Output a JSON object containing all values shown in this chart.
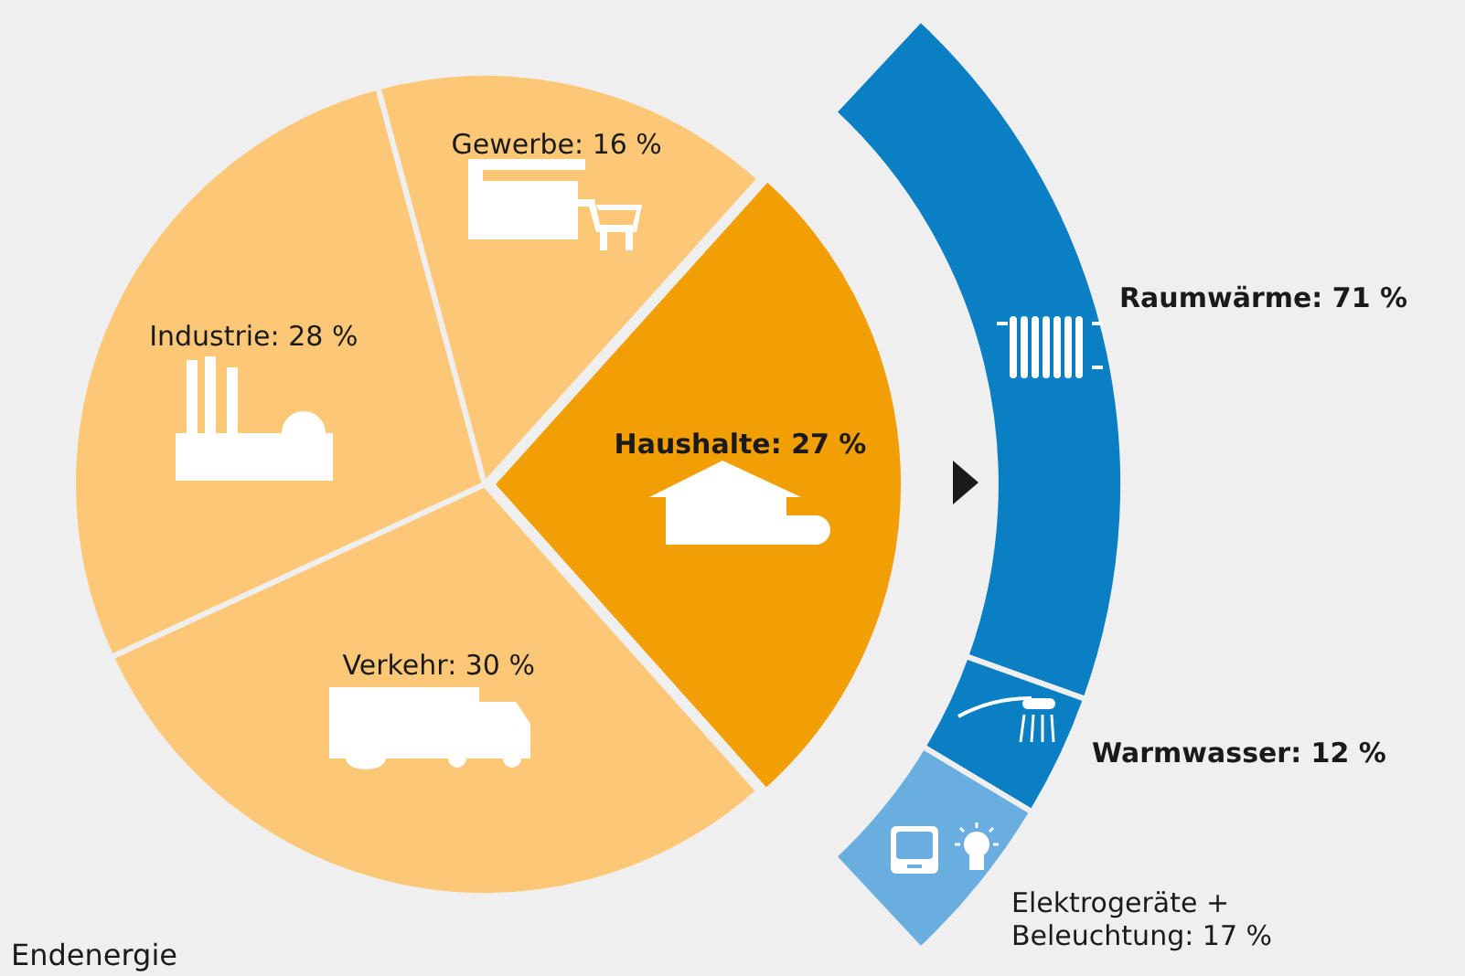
{
  "chart_data": [
    {
      "type": "pie",
      "categories": [
        "Haushalte",
        "Verkehr",
        "Industrie",
        "Gewerbe"
      ],
      "values": [
        27,
        30,
        28,
        16
      ],
      "value_labels": [
        "27 %",
        "30 %",
        "28 %",
        "16 %"
      ],
      "colors": [
        "#f29f05",
        "#fcc878",
        "#fcc878",
        "#fcc878"
      ],
      "legend": false,
      "annotations": [
        "Endenergie"
      ]
    },
    {
      "type": "donut",
      "categories": [
        "Raumwärme",
        "Warmwasser",
        "Elektrogeräte + Beleuchtung"
      ],
      "values": [
        71,
        12,
        17
      ],
      "value_labels": [
        "71 %",
        "12 %",
        "17 %"
      ],
      "colors": [
        "#0b7fc4",
        "#0b7fc4",
        "#6aaee0"
      ],
      "legend": false
    }
  ]
}
